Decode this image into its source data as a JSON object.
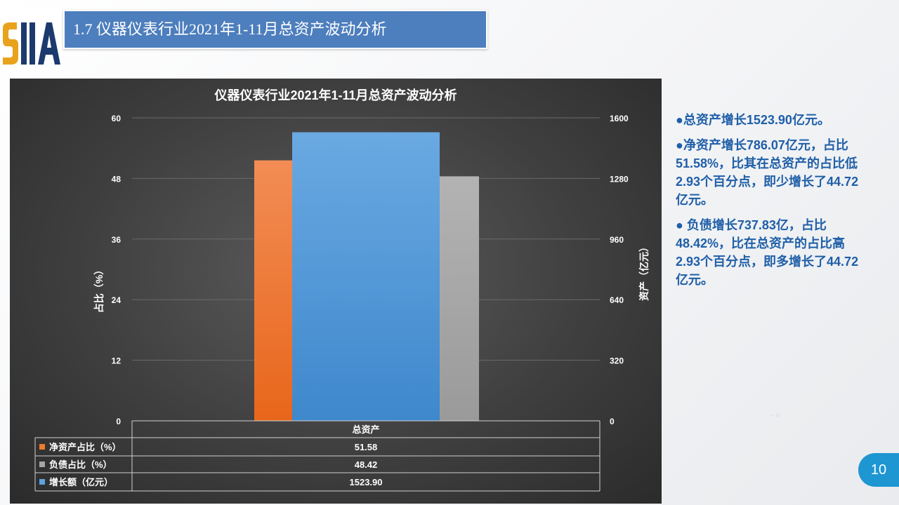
{
  "header": {
    "title": "1.7 仪器仪表行业2021年1-11月总资产波动分析"
  },
  "logo": {
    "text": "SIIA",
    "colors": {
      "gold": "#e8a21c",
      "navy": "#1c3a6e"
    }
  },
  "chart_data": {
    "type": "bar",
    "title": "仪器仪表行业2021年1-11月总资产波动分析",
    "categories": [
      "总资产"
    ],
    "y_left": {
      "label": "占比（%）",
      "ylim": [
        0,
        60
      ],
      "ticks": [
        "0",
        "12",
        "24",
        "36",
        "48",
        "60"
      ]
    },
    "y_right": {
      "label": "资产（亿元）",
      "ylim": [
        0,
        1600
      ],
      "ticks": [
        "0",
        "320",
        "640",
        "960",
        "1280",
        "1600"
      ]
    },
    "series": [
      {
        "name": "净资产占比（%）",
        "values": [
          51.58
        ],
        "value_labels": [
          "51.58"
        ],
        "axis": "left",
        "color": "#f07a2a"
      },
      {
        "name": "增长额（亿元）",
        "values": [
          1523.9
        ],
        "value_labels": [
          "1523.90"
        ],
        "axis": "right",
        "color": "#5ba3e0"
      },
      {
        "name": "负债占比（%）",
        "values": [
          48.42
        ],
        "value_labels": [
          "48.42"
        ],
        "axis": "left",
        "color": "#a6a6a6"
      }
    ],
    "table_rows": [
      "净资产占比（%）",
      "负债占比（%）",
      "增长额（亿元）"
    ],
    "grid": true,
    "legend": "data-table"
  },
  "bullets": [
    {
      "dot": "●",
      "text": "总资产增长1523.90亿元。"
    },
    {
      "dot": "●",
      "text": "净资产增长786.07亿元，占比51.58%，比其在总资产的占比低2.93个百分点，即少增长了44.72亿元。"
    },
    {
      "dot": "●",
      "text": " 负债增长737.83亿，占比48.42%，比在总资产的占比高2.93个百分点，即多增长了44.72亿元。"
    }
  ],
  "faint_mark": "- ∩",
  "page": {
    "number": "10"
  }
}
